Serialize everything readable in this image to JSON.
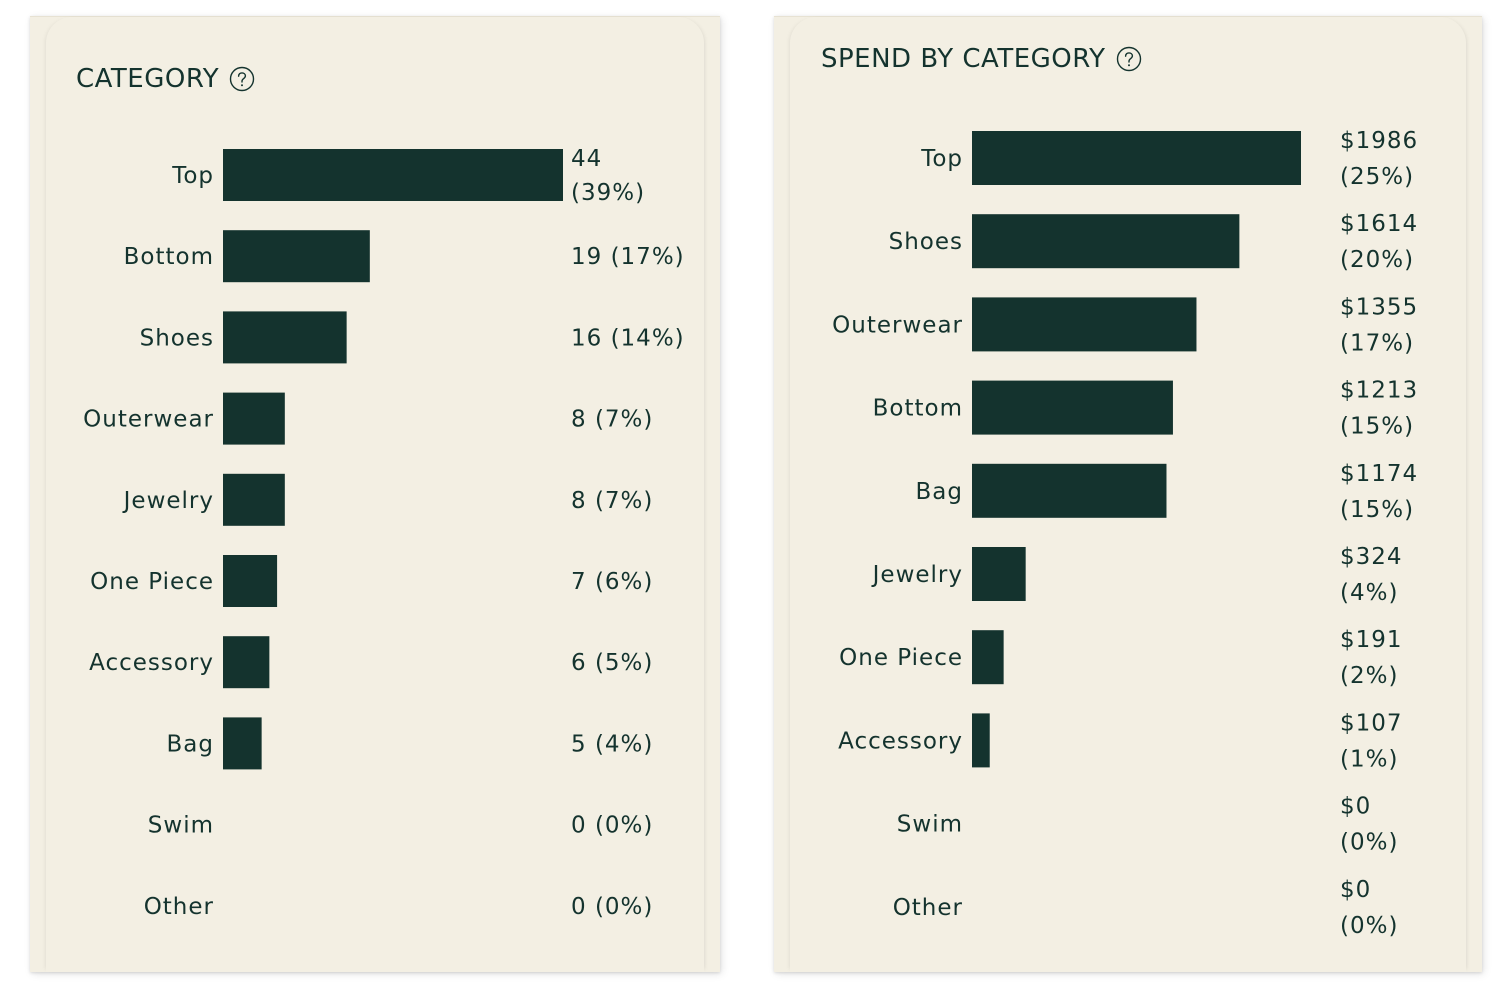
{
  "colors": {
    "bar": "#14332e",
    "card": "#f3efe3",
    "text": "#14332e"
  },
  "panels": [
    {
      "title": "CATEGORY",
      "help_icon": "question-circle-icon"
    },
    {
      "title": "SPEND BY CATEGORY",
      "help_icon": "question-circle-icon"
    }
  ],
  "chart_data": [
    {
      "type": "bar",
      "orientation": "horizontal",
      "title": "CATEGORY",
      "categories": [
        "Top",
        "Bottom",
        "Shoes",
        "Outerwear",
        "Jewelry",
        "One Piece",
        "Accessory",
        "Bag",
        "Swim",
        "Other"
      ],
      "values": [
        44,
        19,
        16,
        8,
        8,
        7,
        6,
        5,
        0,
        0
      ],
      "labels": [
        [
          "44",
          "(39%)"
        ],
        [
          "19 (17%)"
        ],
        [
          "16 (14%)"
        ],
        [
          "8 (7%)"
        ],
        [
          "8 (7%)"
        ],
        [
          "7 (6%)"
        ],
        [
          "6 (5%)"
        ],
        [
          "5 (4%)"
        ],
        [
          "0 (0%)"
        ],
        [
          "0 (0%)"
        ]
      ],
      "grid": false
    },
    {
      "type": "bar",
      "orientation": "horizontal",
      "title": "SPEND BY CATEGORY",
      "categories": [
        "Top",
        "Shoes",
        "Outerwear",
        "Bottom",
        "Bag",
        "Jewelry",
        "One Piece",
        "Accessory",
        "Swim",
        "Other"
      ],
      "values": [
        1986,
        1614,
        1355,
        1213,
        1174,
        324,
        191,
        107,
        0,
        0
      ],
      "labels": [
        [
          "$1986",
          "(25%)"
        ],
        [
          "$1614",
          "(20%)"
        ],
        [
          "$1355",
          "(17%)"
        ],
        [
          "$1213",
          "(15%)"
        ],
        [
          "$1174",
          "(15%)"
        ],
        [
          "$324",
          "(4%)"
        ],
        [
          "$191",
          "(2%)"
        ],
        [
          "$107",
          "(1%)"
        ],
        [
          "$0",
          "(0%)"
        ],
        [
          "$0",
          "(0%)"
        ]
      ],
      "grid": false
    }
  ]
}
